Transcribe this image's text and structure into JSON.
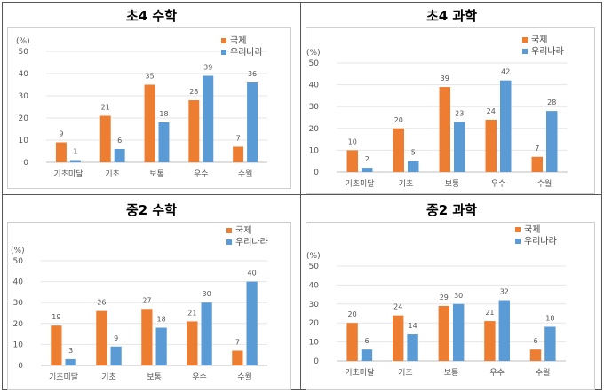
{
  "chart_data": [
    {
      "type": "bar",
      "title": "초4 수학",
      "ylabel": "(%)",
      "ylim": [
        0,
        50
      ],
      "yticks": [
        0,
        10,
        20,
        30,
        40,
        50
      ],
      "categories": [
        "기초미달",
        "기초",
        "보통",
        "우수",
        "수월"
      ],
      "series": [
        {
          "name": "국제",
          "values": [
            9,
            21,
            35,
            28,
            7
          ],
          "color": "#ed7d31"
        },
        {
          "name": "우리나라",
          "values": [
            1,
            6,
            18,
            39,
            36
          ],
          "color": "#5b9bd5"
        }
      ],
      "legend": "top-right"
    },
    {
      "type": "bar",
      "title": "초4 과학",
      "ylabel": "(%)",
      "ylim": [
        0,
        50
      ],
      "yticks": [
        0,
        10,
        20,
        30,
        40,
        50
      ],
      "categories": [
        "기초미달",
        "기초",
        "보통",
        "우수",
        "수월"
      ],
      "series": [
        {
          "name": "국제",
          "values": [
            10,
            20,
            39,
            24,
            7
          ],
          "color": "#ed7d31"
        },
        {
          "name": "우리나라",
          "values": [
            2,
            5,
            23,
            42,
            28
          ],
          "color": "#5b9bd5"
        }
      ],
      "legend": "top-right"
    },
    {
      "type": "bar",
      "title": "중2 수학",
      "ylabel": "(%)",
      "ylim": [
        0,
        50
      ],
      "yticks": [
        0,
        10,
        20,
        30,
        40,
        50
      ],
      "categories": [
        "기초미달",
        "기초",
        "보통",
        "우수",
        "수월"
      ],
      "series": [
        {
          "name": "국제",
          "values": [
            19,
            26,
            27,
            21,
            7
          ],
          "color": "#ed7d31"
        },
        {
          "name": "우리나라",
          "values": [
            3,
            9,
            18,
            30,
            40
          ],
          "color": "#5b9bd5"
        }
      ],
      "legend": "top-right"
    },
    {
      "type": "bar",
      "title": "중2 과학",
      "ylabel": "(%)",
      "ylim": [
        0,
        50
      ],
      "yticks": [
        0,
        10,
        20,
        30,
        40,
        50
      ],
      "categories": [
        "기초미달",
        "기초",
        "보통",
        "우수",
        "수월"
      ],
      "series": [
        {
          "name": "국제",
          "values": [
            20,
            24,
            29,
            21,
            6
          ],
          "color": "#ed7d31"
        },
        {
          "name": "우리나라",
          "values": [
            6,
            14,
            30,
            32,
            18
          ],
          "color": "#5b9bd5"
        }
      ],
      "legend": "top-right"
    }
  ]
}
